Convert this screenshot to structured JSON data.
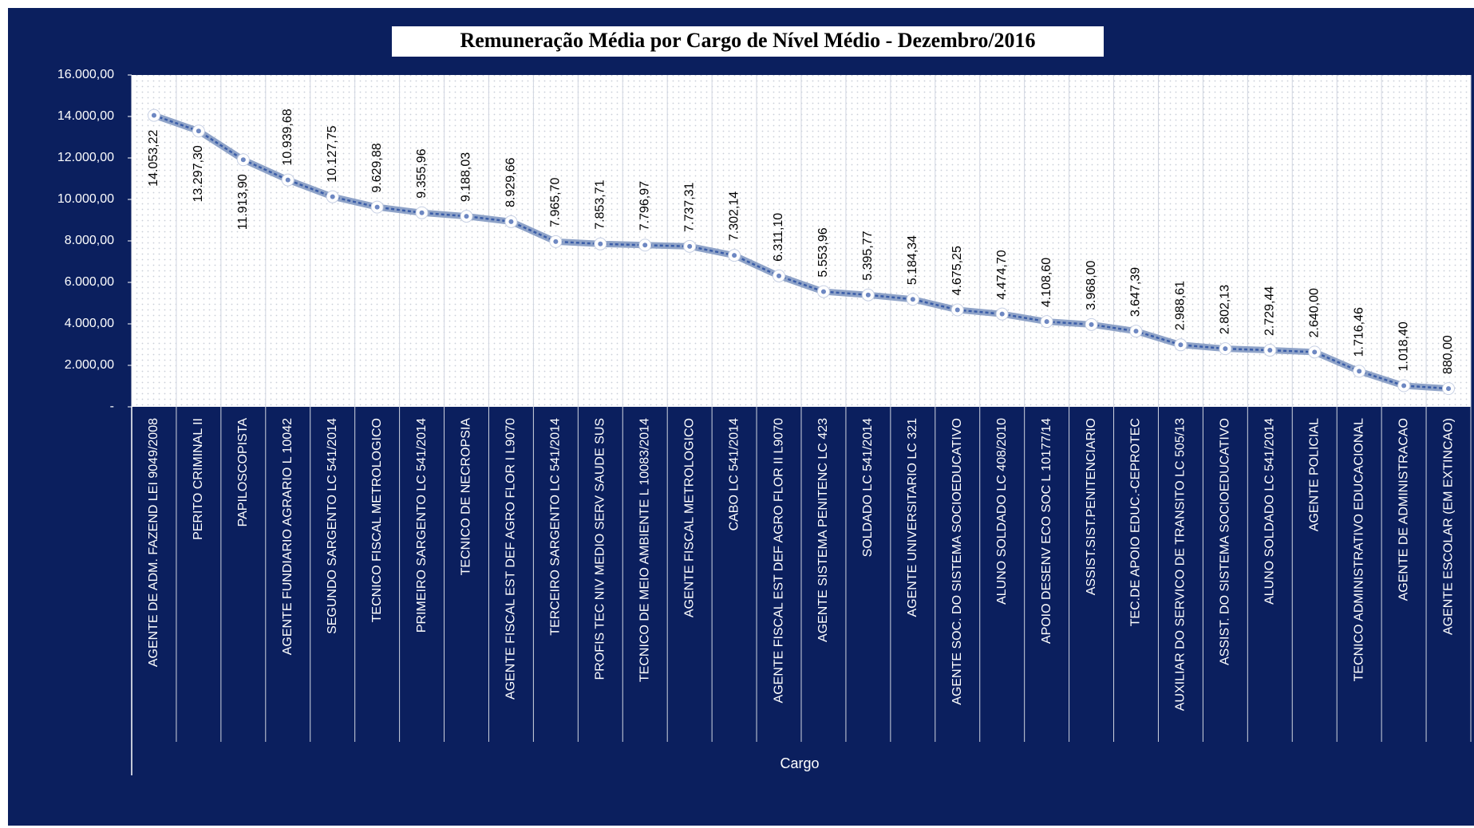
{
  "chart_data": {
    "type": "line",
    "title": "Remuneração Média por Cargo de Nível Médio - Dezembro/2016",
    "x_label": "Cargo",
    "categories": [
      "AGENTE DE ADM. FAZEND LEI 9049/2008",
      "PERITO CRIMINAL II",
      "PAPILOSCOPISTA",
      "AGENTE FUNDIARIO AGRARIO L 10042",
      "SEGUNDO SARGENTO LC 541/2014",
      "TECNICO FISCAL METROLOGICO",
      "PRIMEIRO SARGENTO LC 541/2014",
      "TECNICO DE NECROPSIA",
      "AGENTE FISCAL EST DEF AGRO FLOR I L9070",
      "TERCEIRO SARGENTO LC 541/2014",
      "PROFIS TEC NIV MEDIO SERV SAUDE SUS",
      "TECNICO DE MEIO AMBIENTE L 10083/2014",
      "AGENTE FISCAL METROLOGICO",
      "CABO LC 541/2014",
      "AGENTE FISCAL EST DEF AGRO FLOR II L9070",
      "AGENTE SISTEMA PENITENC LC 423",
      "SOLDADO LC 541/2014",
      "AGENTE UNIVERSITARIO LC 321",
      "AGENTE SOC. DO SISTEMA SOCIOEDUCATIVO",
      "ALUNO SOLDADO LC 408/2010",
      "APOIO DESENV ECO SOC L 10177/14",
      "ASSIST.SIST.PENITENCIARIO",
      "TEC.DE APOIO EDUC.-CEPROTEC",
      "AUXILIAR DO SERVICO DE TRANSITO LC 505/13",
      "ASSIST. DO SISTEMA SOCIOEDUCATIVO",
      "ALUNO SOLDADO LC 541/2014",
      "AGENTE POLICIAL",
      "TECNICO ADMINISTRATIVO EDUCACIONAL",
      "AGENTE DE ADMINISTRACAO",
      "AGENTE ESCOLAR (EM EXTINCAO)"
    ],
    "series": [
      {
        "name": "Remuneração Média",
        "color": "#8fa3c8",
        "values": [
          14053.22,
          13297.3,
          11913.9,
          10939.68,
          10127.75,
          9629.88,
          9355.96,
          9188.03,
          8929.66,
          7965.7,
          7853.71,
          7796.97,
          7737.31,
          7302.14,
          6311.1,
          5553.96,
          5395.77,
          5184.34,
          4675.25,
          4474.7,
          4108.6,
          3968.0,
          3647.39,
          2988.61,
          2802.13,
          2729.44,
          2640.0,
          1716.46,
          1018.4,
          880.0
        ],
        "value_labels": [
          "14.053,22",
          "13.297,30",
          "11.913,90",
          "10.939,68",
          "10.127,75",
          "9.629,88",
          "9.355,96",
          "9.188,03",
          "8.929,66",
          "7.965,70",
          "7.853,71",
          "7.796,97",
          "7.737,31",
          "7.302,14",
          "6.311,10",
          "5.553,96",
          "5.395,77",
          "5.184,34",
          "4.675,25",
          "4.474,70",
          "4.108,60",
          "3.968,00",
          "3.647,39",
          "2.988,61",
          "2.802,13",
          "2.729,44",
          "2.640,00",
          "1.716,46",
          "1.018,40",
          "880,00"
        ]
      }
    ],
    "ylim": [
      0,
      16000
    ],
    "yticks": [
      {
        "value": 0,
        "label": "-"
      },
      {
        "value": 2000,
        "label": "2.000,00"
      },
      {
        "value": 4000,
        "label": "4.000,00"
      },
      {
        "value": 6000,
        "label": "6.000,00"
      },
      {
        "value": 8000,
        "label": "8.000,00"
      },
      {
        "value": 10000,
        "label": "10.000,00"
      },
      {
        "value": 12000,
        "label": "12.000,00"
      },
      {
        "value": 14000,
        "label": "14.000,00"
      },
      {
        "value": 16000,
        "label": "16.000,00"
      }
    ],
    "grid": false
  }
}
